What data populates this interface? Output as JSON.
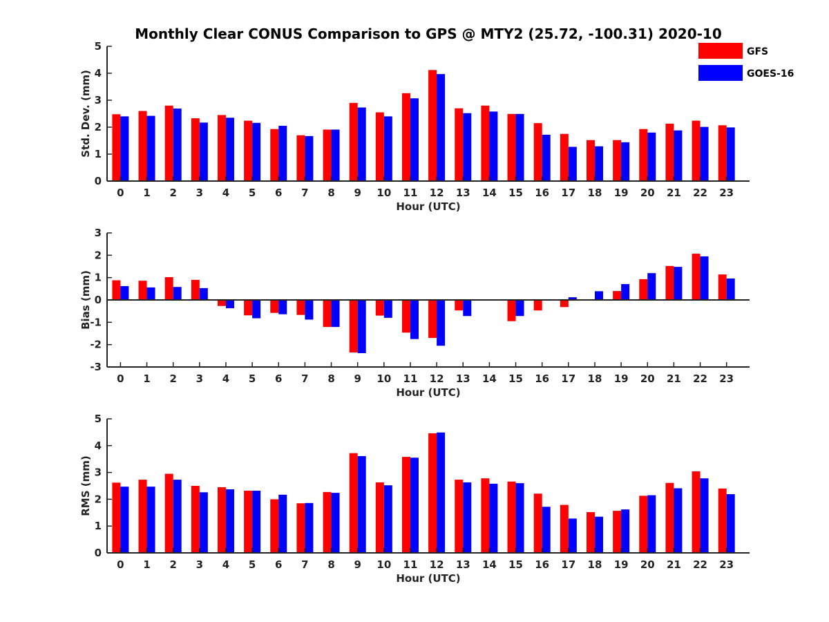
{
  "title": "Monthly Clear CONUS Comparison to GPS @ MTY2 (25.72, -100.31) 2020-10",
  "colors": {
    "GFS": "#ff0000",
    "GOES-16": "#0000ff"
  },
  "legend": {
    "placement": "top-right",
    "entries": [
      "GFS",
      "GOES-16"
    ]
  },
  "chart_data": [
    {
      "type": "bar",
      "xlabel": "Hour (UTC)",
      "ylabel": "Std. Dev. (mm)",
      "ylim": [
        0,
        5
      ],
      "yticks": [
        0,
        1,
        2,
        3,
        4,
        5
      ],
      "categories": [
        "0",
        "1",
        "2",
        "3",
        "4",
        "5",
        "6",
        "7",
        "8",
        "9",
        "10",
        "11",
        "12",
        "13",
        "14",
        "15",
        "16",
        "17",
        "18",
        "19",
        "20",
        "21",
        "22",
        "23"
      ],
      "series": [
        {
          "name": "GFS",
          "values": [
            2.48,
            2.6,
            2.8,
            2.33,
            2.45,
            2.24,
            1.93,
            1.7,
            1.91,
            2.9,
            2.55,
            3.26,
            4.12,
            2.7,
            2.8,
            2.49,
            2.15,
            1.75,
            1.52,
            1.52,
            1.93,
            2.13,
            2.24,
            2.07
          ]
        },
        {
          "name": "GOES-16",
          "values": [
            2.4,
            2.42,
            2.69,
            2.17,
            2.35,
            2.16,
            2.05,
            1.67,
            1.91,
            2.73,
            2.4,
            3.07,
            3.97,
            2.52,
            2.58,
            2.49,
            1.72,
            1.27,
            1.29,
            1.44,
            1.8,
            1.88,
            2.01,
            1.99
          ]
        }
      ]
    },
    {
      "type": "bar",
      "xlabel": "Hour (UTC)",
      "ylabel": "Bias (mm)",
      "ylim": [
        -3,
        3
      ],
      "yticks": [
        -3,
        -2,
        -1,
        0,
        1,
        2,
        3
      ],
      "categories": [
        "0",
        "1",
        "2",
        "3",
        "4",
        "5",
        "6",
        "7",
        "8",
        "9",
        "10",
        "11",
        "12",
        "13",
        "14",
        "15",
        "16",
        "17",
        "18",
        "19",
        "20",
        "21",
        "22",
        "23"
      ],
      "series": [
        {
          "name": "GFS",
          "values": [
            0.88,
            0.86,
            1.02,
            0.9,
            -0.27,
            -0.69,
            -0.58,
            -0.67,
            -1.21,
            -2.35,
            -0.7,
            -1.46,
            -1.7,
            -0.47,
            0.0,
            -0.95,
            -0.47,
            -0.32,
            -0.03,
            0.4,
            0.93,
            1.52,
            2.07,
            1.14
          ]
        },
        {
          "name": "GOES-16",
          "values": [
            0.62,
            0.56,
            0.58,
            0.53,
            -0.37,
            -0.82,
            -0.64,
            -0.88,
            -1.21,
            -2.38,
            -0.8,
            -1.75,
            -2.05,
            -0.72,
            -0.03,
            -0.72,
            -0.02,
            0.12,
            0.39,
            0.71,
            1.2,
            1.48,
            1.95,
            0.96
          ]
        }
      ]
    },
    {
      "type": "bar",
      "xlabel": "Hour (UTC)",
      "ylabel": "RMS (mm)",
      "ylim": [
        0,
        5
      ],
      "yticks": [
        0,
        1,
        2,
        3,
        4,
        5
      ],
      "categories": [
        "0",
        "1",
        "2",
        "3",
        "4",
        "5",
        "6",
        "7",
        "8",
        "9",
        "10",
        "11",
        "12",
        "13",
        "14",
        "15",
        "16",
        "17",
        "18",
        "19",
        "20",
        "21",
        "22",
        "23"
      ],
      "series": [
        {
          "name": "GFS",
          "values": [
            2.62,
            2.73,
            2.95,
            2.5,
            2.45,
            2.32,
            2.0,
            1.85,
            2.27,
            3.72,
            2.63,
            3.58,
            4.46,
            2.73,
            2.78,
            2.66,
            2.21,
            1.79,
            1.52,
            1.57,
            2.13,
            2.61,
            3.04,
            2.4
          ]
        },
        {
          "name": "GOES-16",
          "values": [
            2.47,
            2.47,
            2.73,
            2.26,
            2.37,
            2.32,
            2.17,
            1.86,
            2.24,
            3.61,
            2.52,
            3.55,
            4.49,
            2.63,
            2.58,
            2.6,
            1.72,
            1.28,
            1.35,
            1.62,
            2.15,
            2.41,
            2.78,
            2.19
          ]
        }
      ]
    }
  ]
}
